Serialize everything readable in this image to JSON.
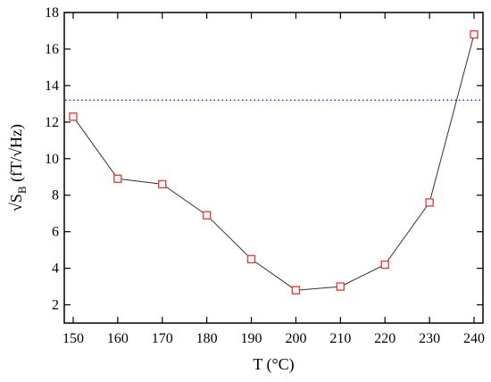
{
  "chart_data": {
    "type": "line",
    "xlabel": "T (°C)",
    "ylabel": {
      "main": "√S",
      "subscript": "B",
      "unit": " (fT/√Hz)"
    },
    "xlim": [
      148,
      242
    ],
    "ylim": [
      1,
      18
    ],
    "x_ticks": [
      150,
      160,
      170,
      180,
      190,
      200,
      210,
      220,
      230,
      240
    ],
    "y_ticks": [
      2,
      4,
      6,
      8,
      10,
      12,
      14,
      16,
      18
    ],
    "series": [
      {
        "x": [
          150,
          160,
          170,
          180,
          190,
          200,
          210,
          220,
          230,
          240
        ],
        "values": [
          12.3,
          8.9,
          8.6,
          6.9,
          4.5,
          2.8,
          3.0,
          4.2,
          7.6,
          16.8
        ],
        "line_color": "#333333",
        "marker": "open-square",
        "marker_color": "#e8413c"
      }
    ],
    "reference_line": {
      "y": 13.2,
      "style": "dotted",
      "color": "#2b2bd8"
    },
    "grid": false,
    "legend": "none"
  }
}
